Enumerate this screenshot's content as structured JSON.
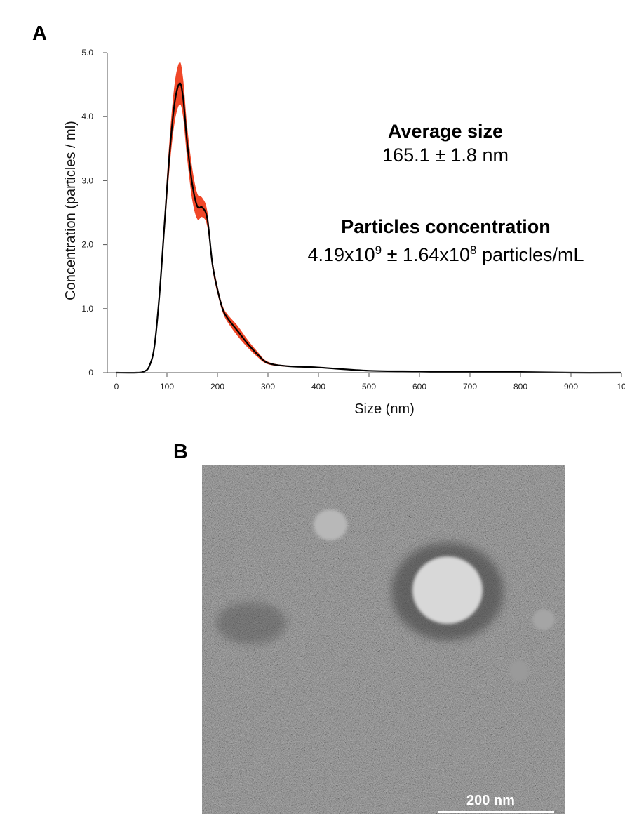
{
  "panels": {
    "a_label": "A",
    "b_label": "B"
  },
  "chart_data": {
    "type": "line",
    "xlabel": "Size (nm)",
    "ylabel": "Concentration (particles / ml)",
    "xlim": [
      0,
      1000
    ],
    "ylim": [
      0,
      5
    ],
    "x_ticks": [
      "0",
      "100",
      "200",
      "300",
      "400",
      "500",
      "600",
      "700",
      "800",
      "900",
      "10"
    ],
    "y_ticks": [
      "0",
      "1.0",
      "2.0",
      "3.0",
      "4.0",
      "5.0"
    ],
    "series": [
      {
        "x": [
          0,
          40,
          55,
          65,
          75,
          85,
          95,
          105,
          115,
          125,
          132,
          140,
          150,
          160,
          170,
          180,
          190,
          200,
          210,
          220,
          240,
          260,
          280,
          300,
          340,
          400,
          500,
          600,
          700,
          800,
          900,
          1000
        ],
        "y": [
          0,
          0,
          0.02,
          0.1,
          0.4,
          1.2,
          2.3,
          3.4,
          4.2,
          4.52,
          4.3,
          3.6,
          2.95,
          2.6,
          2.58,
          2.4,
          1.7,
          1.3,
          1.0,
          0.85,
          0.65,
          0.45,
          0.28,
          0.15,
          0.1,
          0.08,
          0.03,
          0.02,
          0.01,
          0.01,
          0.0,
          0.0
        ],
        "error": [
          0,
          0,
          0,
          0.02,
          0.05,
          0.1,
          0.15,
          0.22,
          0.3,
          0.33,
          0.3,
          0.25,
          0.25,
          0.2,
          0.15,
          0.12,
          0.08,
          0.06,
          0.05,
          0.06,
          0.08,
          0.06,
          0.04,
          0.02,
          0.01,
          0.01,
          0.0,
          0.0,
          0.0,
          0.0,
          0.0,
          0.0
        ],
        "line_color": "#000000",
        "band_color": "#ee3311"
      }
    ]
  },
  "annotations": {
    "avg_title": "Average size",
    "avg_value": "165.1 ± 1.8 nm",
    "conc_title": "Particles concentration",
    "conc_base1": "4.19x10",
    "conc_exp1": "9",
    "conc_mid": " ± 1.64x10",
    "conc_exp2": "8",
    "conc_tail": " particles/mL"
  },
  "tem": {
    "scale_label": "200 nm"
  }
}
